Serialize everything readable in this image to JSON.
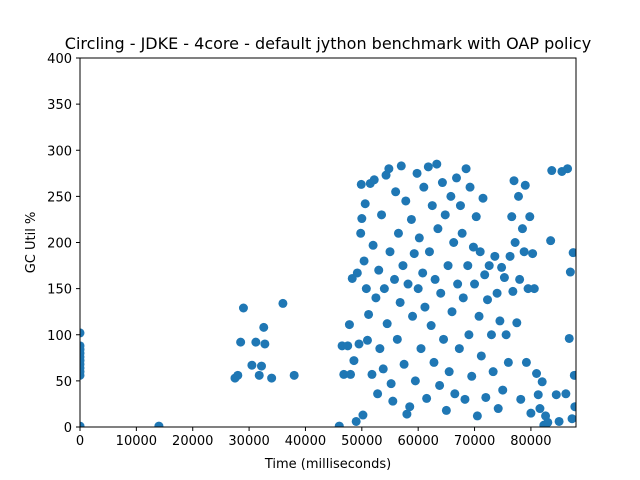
{
  "chart_data": {
    "type": "scatter",
    "title": "Circling - JDKE - 4core -  default jython benchmark with OAP policy",
    "xlabel": "Time (milliseconds)",
    "ylabel": "GC Util %",
    "xlim": [
      0,
      88000
    ],
    "ylim": [
      0,
      400
    ],
    "xticks": [
      0,
      10000,
      20000,
      30000,
      40000,
      50000,
      60000,
      70000,
      80000
    ],
    "yticks": [
      0,
      50,
      100,
      150,
      200,
      250,
      300,
      350,
      400
    ],
    "grid": false,
    "legend": "none",
    "marker_color": "#1f77b4",
    "series": [
      {
        "points": [
          [
            0,
            1
          ],
          [
            0,
            56
          ],
          [
            0,
            60
          ],
          [
            0,
            64
          ],
          [
            0,
            68
          ],
          [
            0,
            72
          ],
          [
            0,
            76
          ],
          [
            0,
            80
          ],
          [
            0,
            84
          ],
          [
            0,
            88
          ],
          [
            0,
            102
          ],
          [
            14000,
            1
          ],
          [
            27500,
            53
          ],
          [
            28000,
            56
          ],
          [
            28500,
            92
          ],
          [
            29000,
            129
          ],
          [
            30500,
            67
          ],
          [
            31200,
            92
          ],
          [
            31800,
            56
          ],
          [
            32200,
            66
          ],
          [
            32800,
            90
          ],
          [
            32600,
            108
          ],
          [
            34000,
            53
          ],
          [
            36000,
            134
          ],
          [
            38000,
            56
          ],
          [
            46000,
            1
          ],
          [
            46500,
            88
          ],
          [
            46800,
            57
          ],
          [
            47500,
            88
          ],
          [
            47800,
            111
          ],
          [
            48000,
            57
          ],
          [
            48300,
            161
          ],
          [
            48600,
            72
          ],
          [
            49000,
            6
          ],
          [
            49200,
            167
          ],
          [
            49500,
            90
          ],
          [
            49800,
            210
          ],
          [
            49900,
            263
          ],
          [
            50000,
            226
          ],
          [
            50200,
            13
          ],
          [
            50400,
            180
          ],
          [
            50600,
            242
          ],
          [
            50800,
            150
          ],
          [
            51000,
            94
          ],
          [
            51200,
            122
          ],
          [
            51500,
            264
          ],
          [
            51800,
            57
          ],
          [
            52000,
            197
          ],
          [
            52200,
            268
          ],
          [
            52500,
            140
          ],
          [
            52800,
            36
          ],
          [
            53000,
            170
          ],
          [
            53200,
            85
          ],
          [
            53500,
            230
          ],
          [
            53800,
            63
          ],
          [
            54000,
            150
          ],
          [
            54300,
            273
          ],
          [
            54500,
            112
          ],
          [
            54800,
            280
          ],
          [
            55000,
            190
          ],
          [
            55200,
            47
          ],
          [
            55500,
            28
          ],
          [
            55800,
            160
          ],
          [
            56000,
            255
          ],
          [
            56300,
            95
          ],
          [
            56500,
            210
          ],
          [
            56800,
            135
          ],
          [
            57000,
            283
          ],
          [
            57300,
            175
          ],
          [
            57500,
            68
          ],
          [
            57800,
            245
          ],
          [
            58000,
            14
          ],
          [
            58200,
            155
          ],
          [
            58500,
            22
          ],
          [
            58800,
            225
          ],
          [
            59000,
            120
          ],
          [
            59300,
            188
          ],
          [
            59500,
            50
          ],
          [
            59800,
            275
          ],
          [
            60000,
            150
          ],
          [
            60200,
            205
          ],
          [
            60500,
            85
          ],
          [
            60800,
            167
          ],
          [
            61000,
            260
          ],
          [
            61200,
            130
          ],
          [
            61500,
            31
          ],
          [
            61800,
            282
          ],
          [
            62000,
            190
          ],
          [
            62300,
            110
          ],
          [
            62500,
            240
          ],
          [
            62800,
            70
          ],
          [
            63000,
            160
          ],
          [
            63300,
            285
          ],
          [
            63500,
            215
          ],
          [
            63800,
            45
          ],
          [
            64000,
            145
          ],
          [
            64300,
            265
          ],
          [
            64500,
            95
          ],
          [
            64800,
            230
          ],
          [
            65000,
            18
          ],
          [
            65300,
            175
          ],
          [
            65500,
            60
          ],
          [
            65800,
            250
          ],
          [
            66000,
            125
          ],
          [
            66300,
            200
          ],
          [
            66500,
            36
          ],
          [
            66800,
            270
          ],
          [
            67000,
            155
          ],
          [
            67300,
            85
          ],
          [
            67500,
            240
          ],
          [
            67800,
            210
          ],
          [
            68000,
            140
          ],
          [
            68300,
            30
          ],
          [
            68500,
            280
          ],
          [
            68800,
            175
          ],
          [
            69000,
            100
          ],
          [
            69200,
            260
          ],
          [
            69500,
            55
          ],
          [
            69800,
            195
          ],
          [
            70000,
            155
          ],
          [
            70300,
            228
          ],
          [
            70500,
            12
          ],
          [
            70800,
            120
          ],
          [
            71000,
            190
          ],
          [
            71200,
            77
          ],
          [
            71500,
            248
          ],
          [
            71800,
            165
          ],
          [
            72000,
            32
          ],
          [
            72300,
            138
          ],
          [
            72600,
            175
          ],
          [
            73000,
            100
          ],
          [
            73300,
            60
          ],
          [
            73600,
            185
          ],
          [
            74000,
            145
          ],
          [
            74200,
            20
          ],
          [
            74500,
            115
          ],
          [
            74800,
            173
          ],
          [
            75000,
            40
          ],
          [
            75300,
            162
          ],
          [
            75600,
            100
          ],
          [
            76000,
            70
          ],
          [
            76300,
            185
          ],
          [
            76600,
            228
          ],
          [
            76800,
            147
          ],
          [
            77000,
            267
          ],
          [
            77200,
            200
          ],
          [
            77500,
            113
          ],
          [
            77800,
            250
          ],
          [
            78000,
            160
          ],
          [
            78200,
            30
          ],
          [
            78500,
            215
          ],
          [
            78800,
            190
          ],
          [
            79000,
            262
          ],
          [
            79200,
            70
          ],
          [
            79500,
            150
          ],
          [
            79800,
            228
          ],
          [
            80000,
            15
          ],
          [
            80300,
            188
          ],
          [
            80600,
            150
          ],
          [
            81000,
            58
          ],
          [
            81300,
            35
          ],
          [
            81600,
            20
          ],
          [
            82000,
            49
          ],
          [
            82300,
            2
          ],
          [
            82600,
            12
          ],
          [
            83000,
            5
          ],
          [
            83500,
            202
          ],
          [
            83700,
            278
          ],
          [
            84500,
            35
          ],
          [
            85000,
            6
          ],
          [
            85500,
            277
          ],
          [
            86200,
            36
          ],
          [
            86500,
            280
          ],
          [
            86800,
            96
          ],
          [
            87000,
            168
          ],
          [
            87300,
            9
          ],
          [
            87500,
            189
          ],
          [
            87700,
            56
          ],
          [
            87800,
            22
          ]
        ]
      }
    ]
  }
}
